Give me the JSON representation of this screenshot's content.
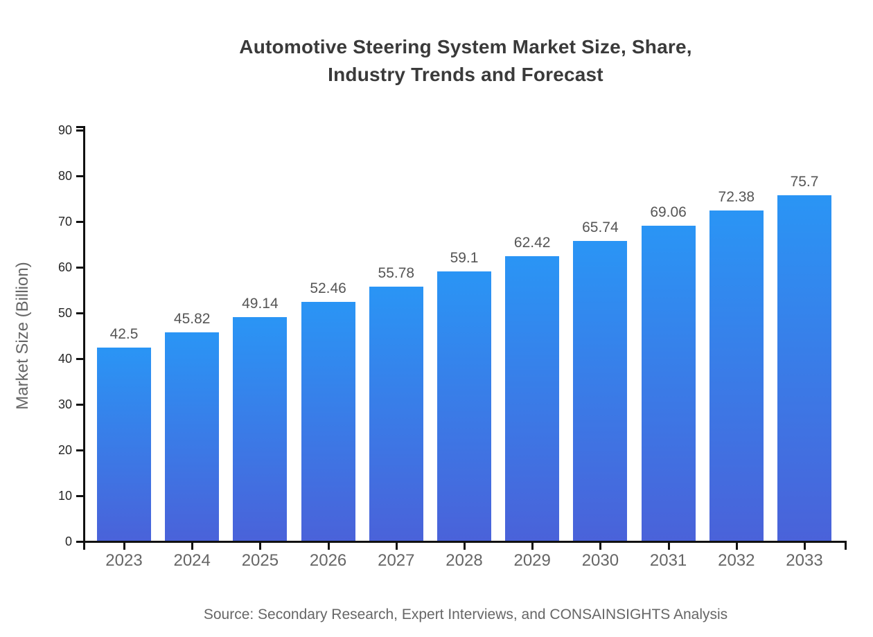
{
  "chart_data": {
    "type": "bar",
    "title": "Automotive Steering System Market Size, Share,\nIndustry Trends and Forecast",
    "categories": [
      "2023",
      "2024",
      "2025",
      "2026",
      "2027",
      "2028",
      "2029",
      "2030",
      "2031",
      "2032",
      "2033"
    ],
    "values": [
      42.5,
      45.82,
      49.14,
      52.46,
      55.78,
      59.1,
      62.42,
      65.74,
      69.06,
      72.38,
      75.7
    ],
    "value_labels": [
      "42.5",
      "45.82",
      "49.14",
      "52.46",
      "55.78",
      "59.1",
      "62.42",
      "65.74",
      "69.06",
      "72.38",
      "75.7"
    ],
    "xlabel": "",
    "ylabel": "Market Size (Billion)",
    "ylim": [
      0,
      90
    ],
    "yticks": [
      0,
      10,
      20,
      30,
      40,
      50,
      60,
      70,
      80,
      90
    ],
    "grid": false,
    "legend_position": "none",
    "source_note": "Source: Secondary Research, Expert Interviews, and CONSAINSIGHTS Analysis"
  },
  "colors": {
    "bar_gradient_top": "#2a95f5",
    "bar_gradient_bottom": "#4a62d9",
    "axis_line": "#111111",
    "title_text": "#3a3a3a",
    "ytick_text": "#262626",
    "xtick_text": "#666666",
    "value_text": "#555555",
    "ylabel_text": "#666666",
    "source_text": "#666666",
    "background": "#ffffff"
  }
}
